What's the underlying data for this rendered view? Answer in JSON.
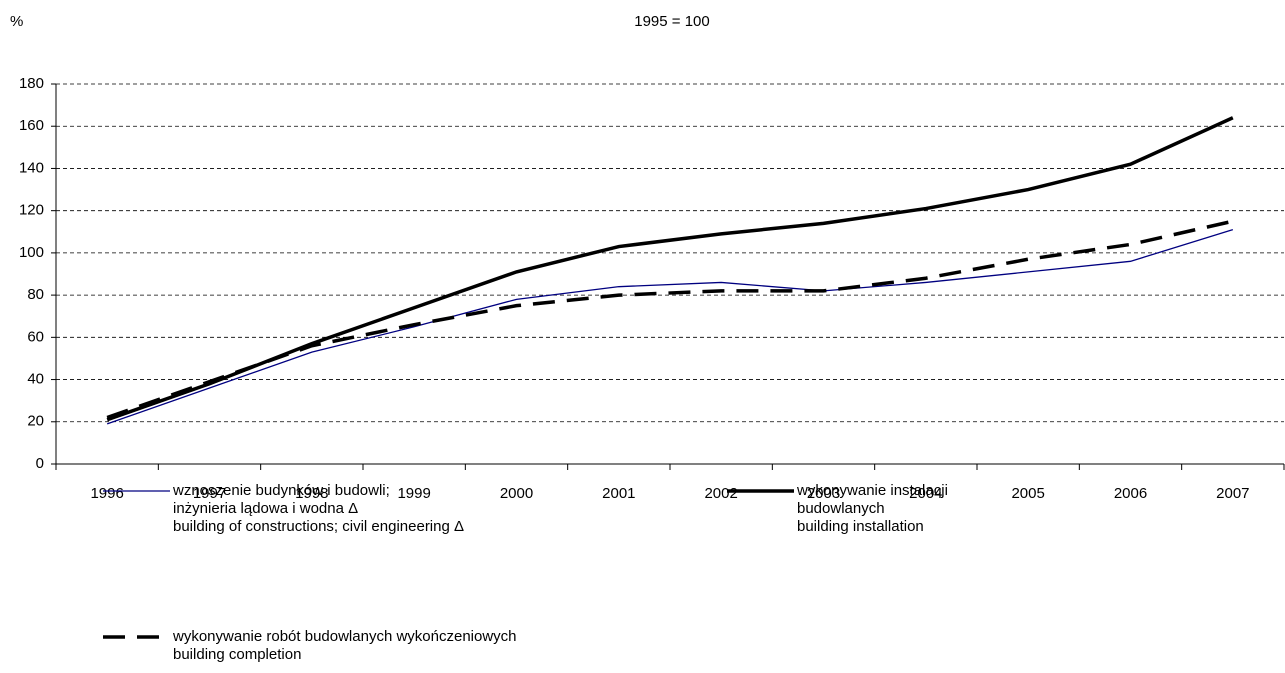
{
  "chart_data": {
    "type": "line",
    "unit_label": "%",
    "subtitle": "1995 = 100",
    "categories": [
      "1996",
      "1997",
      "1998",
      "1999",
      "2000",
      "2001",
      "2002",
      "2003",
      "2004",
      "2005",
      "2006",
      "2007"
    ],
    "series": [
      {
        "name": "wznoszenie budynków i budowli;\ninżynieria lądowa i wodna Δ\nbuilding of constructions; civil engineering Δ",
        "color": "#000080",
        "width": 1.3,
        "dash": "solid",
        "values": [
          19,
          36,
          53,
          65,
          78,
          84,
          86,
          82,
          86,
          91,
          96,
          111
        ]
      },
      {
        "name": "wykonywanie instalacji\nbudowlanych\nbuilding installation",
        "color": "#000000",
        "width": 3.5,
        "dash": "solid",
        "values": [
          21,
          38,
          57,
          74,
          91,
          103,
          109,
          114,
          121,
          130,
          142,
          164
        ]
      },
      {
        "name": "wykonywanie robót budowlanych wykończeniowych\nbuilding completion",
        "color": "#000000",
        "width": 3.5,
        "dash": "dashed",
        "values": [
          22,
          39,
          56,
          66,
          75,
          80,
          82,
          82,
          88,
          97,
          104,
          115
        ]
      }
    ],
    "ylim": [
      0,
      180
    ],
    "yticks": [
      0,
      20,
      40,
      60,
      80,
      100,
      120,
      140,
      160,
      180
    ],
    "grid": true
  }
}
